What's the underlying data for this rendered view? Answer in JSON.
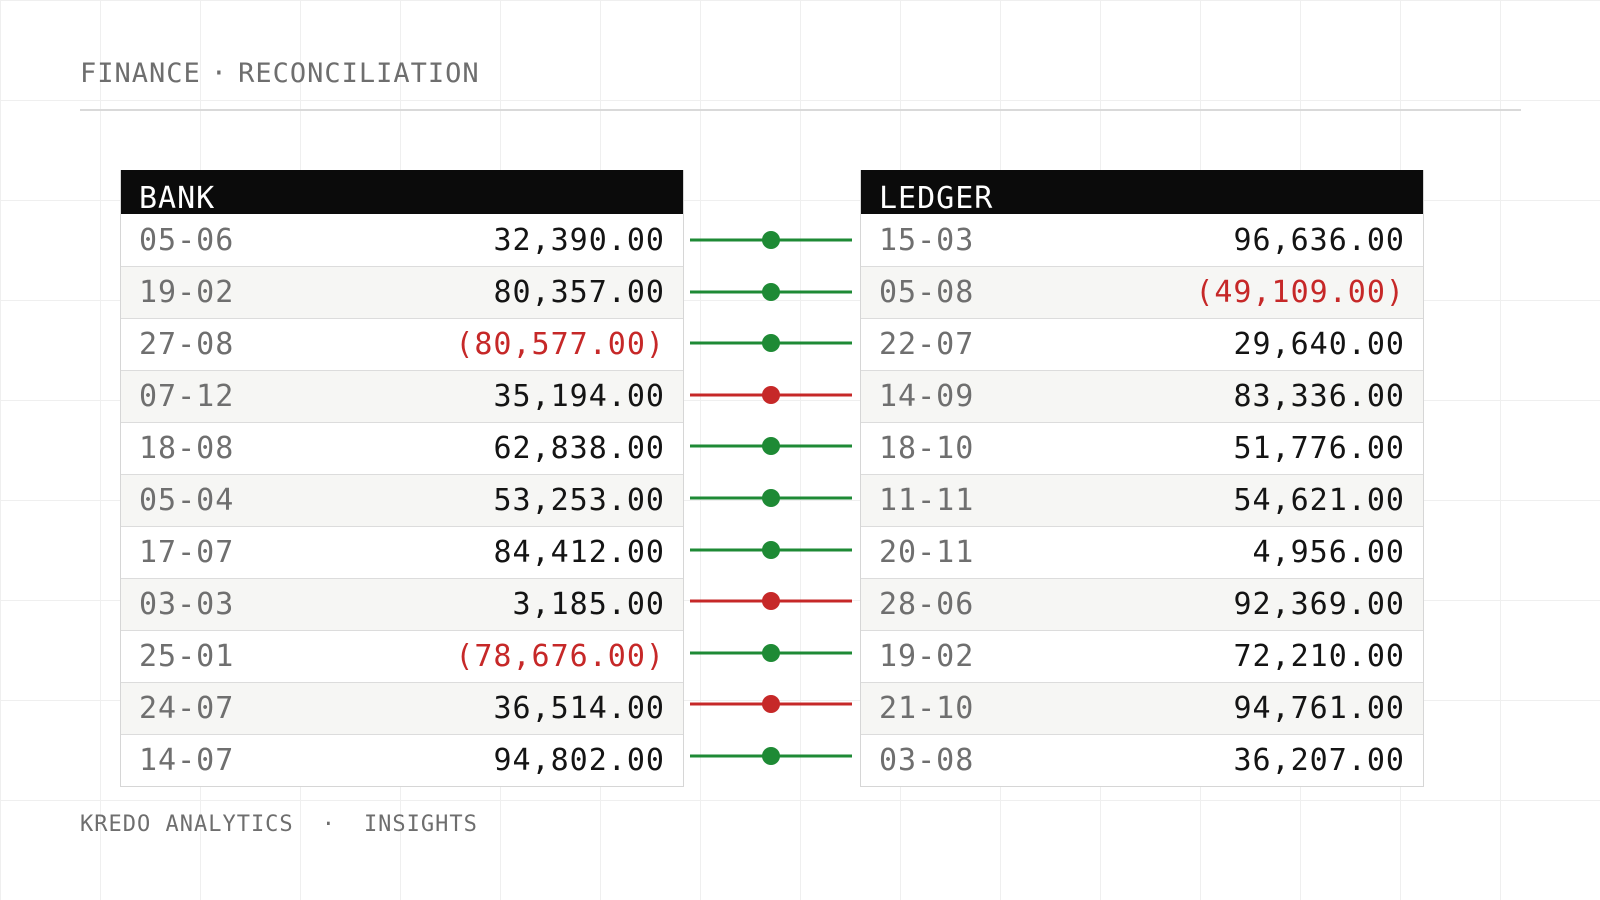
{
  "header": {
    "section": "FINANCE",
    "separator": "·",
    "title": "RECONCILIATION"
  },
  "bank": {
    "title": "BANK",
    "rows": [
      {
        "date": "05-06",
        "amount": "32,390.00"
      },
      {
        "date": "19-02",
        "amount": "80,357.00"
      },
      {
        "date": "27-08",
        "amount": "(80,577.00)"
      },
      {
        "date": "07-12",
        "amount": "35,194.00"
      },
      {
        "date": "18-08",
        "amount": "62,838.00"
      },
      {
        "date": "05-04",
        "amount": "53,253.00"
      },
      {
        "date": "17-07",
        "amount": "84,412.00"
      },
      {
        "date": "03-03",
        "amount": "3,185.00"
      },
      {
        "date": "25-01",
        "amount": "(78,676.00)"
      },
      {
        "date": "24-07",
        "amount": "36,514.00"
      },
      {
        "date": "14-07",
        "amount": "94,802.00"
      }
    ]
  },
  "ledger": {
    "title": "LEDGER",
    "rows": [
      {
        "date": "15-03",
        "amount": "96,636.00"
      },
      {
        "date": "05-08",
        "amount": "(49,109.00)"
      },
      {
        "date": "22-07",
        "amount": "29,640.00"
      },
      {
        "date": "14-09",
        "amount": "83,336.00"
      },
      {
        "date": "18-10",
        "amount": "51,776.00"
      },
      {
        "date": "11-11",
        "amount": "54,621.00"
      },
      {
        "date": "20-11",
        "amount": "4,956.00"
      },
      {
        "date": "28-06",
        "amount": "92,369.00"
      },
      {
        "date": "19-02",
        "amount": "72,210.00"
      },
      {
        "date": "21-10",
        "amount": "94,761.00"
      },
      {
        "date": "03-08",
        "amount": "36,207.00"
      }
    ]
  },
  "matches": [
    "match",
    "match",
    "match",
    "mismatch",
    "match",
    "match",
    "match",
    "mismatch",
    "match",
    "mismatch",
    "match"
  ],
  "colors": {
    "match": "#1e8a35",
    "mismatch": "#c62828",
    "negative": "#c62828"
  },
  "footer": {
    "brand": "KREDO ANALYTICS",
    "separator": "·",
    "tagline": "INSIGHTS"
  }
}
